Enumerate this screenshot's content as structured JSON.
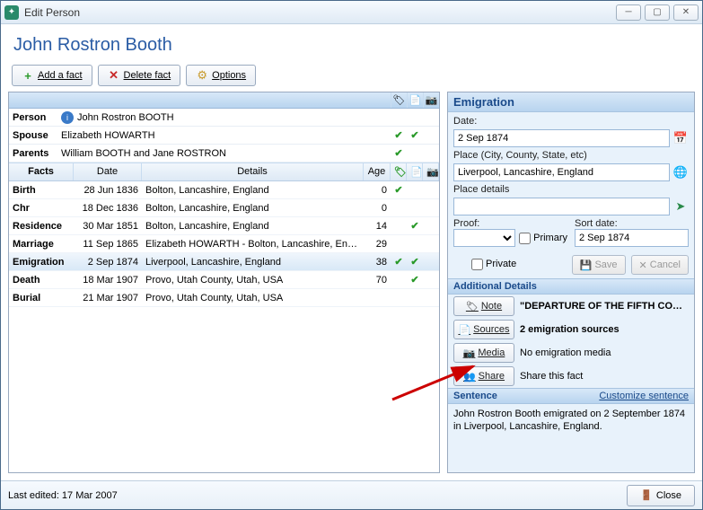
{
  "window": {
    "title": "Edit Person"
  },
  "person_name": "John Rostron Booth",
  "toolbar": {
    "add": "Add a fact",
    "delete": "Delete fact",
    "options": "Options"
  },
  "identity": {
    "person_label": "Person",
    "person_value": "John Rostron BOOTH",
    "spouse_label": "Spouse",
    "spouse_value": "Elizabeth HOWARTH",
    "parents_label": "Parents",
    "parents_value": "William BOOTH and Jane ROSTRON"
  },
  "columns": {
    "facts": "Facts",
    "date": "Date",
    "details": "Details",
    "age": "Age"
  },
  "facts": [
    {
      "fact": "Birth",
      "date": "28 Jun 1836",
      "details": "Bolton, Lancashire, England",
      "age": "0",
      "note": true,
      "src": false
    },
    {
      "fact": "Chr",
      "date": "18 Dec 1836",
      "details": "Bolton, Lancashire, England",
      "age": "0",
      "note": false,
      "src": false
    },
    {
      "fact": "Residence",
      "date": "30 Mar 1851",
      "details": "Bolton, Lancashire, England",
      "age": "14",
      "note": false,
      "src": true
    },
    {
      "fact": "Marriage",
      "date": "11 Sep 1865",
      "details": "Elizabeth HOWARTH - Bolton, Lancashire, Eng...",
      "age": "29",
      "note": false,
      "src": false
    },
    {
      "fact": "Emigration",
      "date": "2 Sep 1874",
      "details": "Liverpool, Lancashire, England",
      "age": "38",
      "note": true,
      "src": true,
      "selected": true
    },
    {
      "fact": "Death",
      "date": "18 Mar 1907",
      "details": "Provo, Utah County, Utah, USA",
      "age": "70",
      "note": false,
      "src": true
    },
    {
      "fact": "Burial",
      "date": "21 Mar 1907",
      "details": "Provo, Utah County, Utah, USA",
      "age": "",
      "note": false,
      "src": false
    }
  ],
  "detail": {
    "title": "Emigration",
    "date_label": "Date:",
    "date_value": "2 Sep 1874",
    "place_label": "Place (City, County, State, etc)",
    "place_value": "Liverpool, Lancashire, England",
    "place_details_label": "Place details",
    "place_details_value": "",
    "proof_label": "Proof:",
    "primary_label": "Primary",
    "sortdate_label": "Sort date:",
    "sortdate_value": "2 Sep 1874",
    "private_label": "Private",
    "save": "Save",
    "cancel": "Cancel",
    "additional_title": "Additional Details",
    "note_btn": "Note",
    "note_text": "\"DEPARTURE OF THE FIFTH COMPAN",
    "sources_btn": "Sources",
    "sources_text": "2 emigration sources",
    "media_btn": "Media",
    "media_text": "No emigration media",
    "share_btn": "Share",
    "share_text": "Share this fact",
    "sentence_title": "Sentence",
    "customize": "Customize sentence",
    "sentence_text": "John Rostron Booth emigrated on 2 September 1874 in Liverpool, Lancashire, England."
  },
  "footer": {
    "last_edited": "Last edited: 17 Mar 2007",
    "close": "Close"
  }
}
